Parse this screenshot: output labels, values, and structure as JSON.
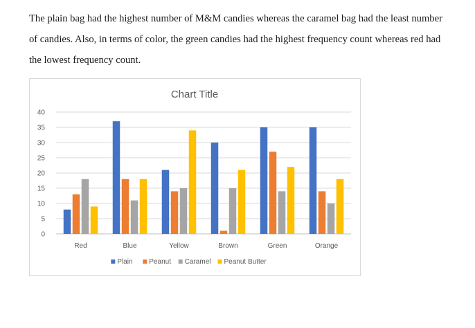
{
  "document": {
    "paragraph_lines": [
      "The plain bag had the highest number of M&M candies whereas the caramel bag had the least number",
      "of candies. Also, in terms of color, the green candies had the highest frequency count whereas red had",
      "the lowest frequency count."
    ]
  },
  "chart_data": {
    "type": "bar",
    "title": "Chart Title",
    "xlabel": "",
    "ylabel": "",
    "categories": [
      "Red",
      "Blue",
      "Yellow",
      "Brown",
      "Green",
      "Orange"
    ],
    "series": [
      {
        "name": "Plain",
        "values": [
          8,
          37,
          21,
          30,
          35,
          35
        ],
        "color": "#4472c4"
      },
      {
        "name": "Peanut",
        "values": [
          13,
          18,
          14,
          1,
          27,
          14
        ],
        "color": "#ed7d31"
      },
      {
        "name": "Caramel",
        "values": [
          18,
          11,
          15,
          15,
          14,
          10
        ],
        "color": "#a5a5a5"
      },
      {
        "name": "Peanut Butter",
        "values": [
          9,
          18,
          34,
          21,
          22,
          18
        ],
        "color": "#ffc000"
      }
    ],
    "ylim": [
      0,
      40
    ],
    "yticks": [
      0,
      5,
      10,
      15,
      20,
      25,
      30,
      35,
      40
    ],
    "grid": true,
    "legend_position": "bottom"
  }
}
